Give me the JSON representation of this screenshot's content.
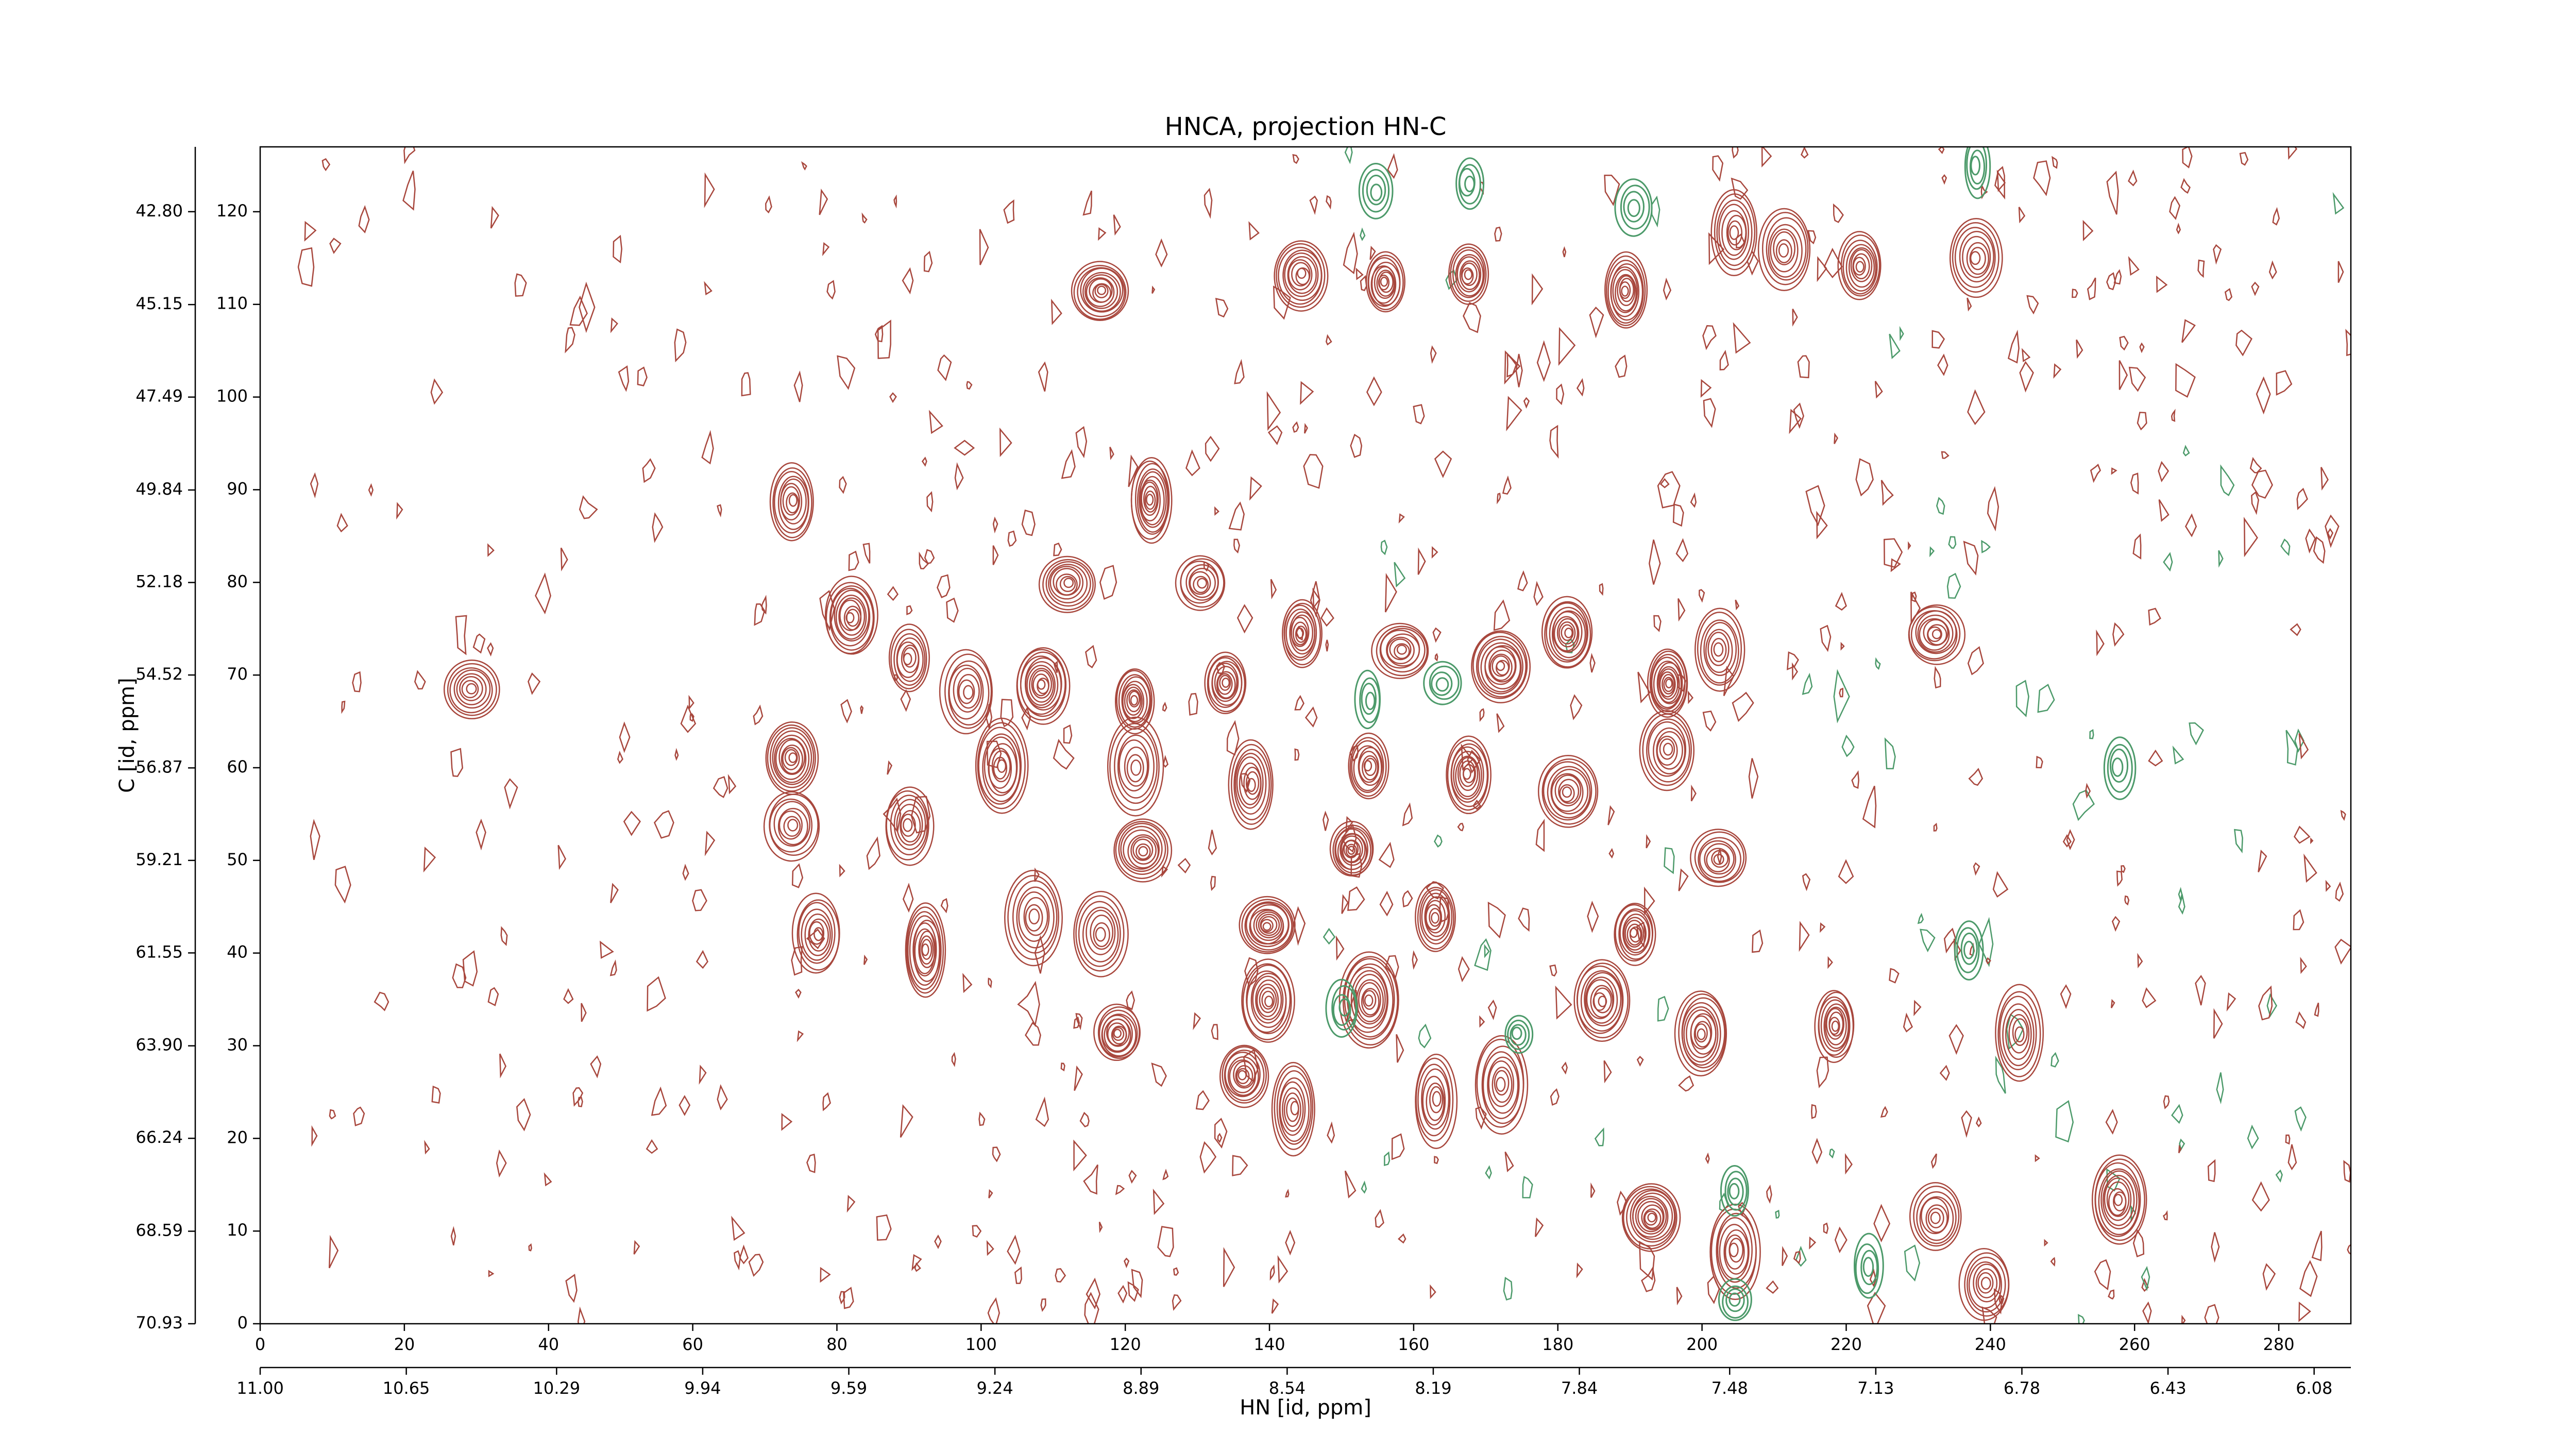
{
  "chart_data": {
    "type": "contour",
    "title": "HNCA, projection HN-C",
    "xlabel": "HN [id, ppm]",
    "ylabel": "C [id, ppm]",
    "xlim": [
      0,
      290
    ],
    "ylim": [
      0,
      127
    ],
    "xticks": [
      0,
      20,
      40,
      60,
      80,
      100,
      120,
      140,
      160,
      180,
      200,
      220,
      240,
      260,
      280
    ],
    "yticks": [
      0,
      10,
      20,
      30,
      40,
      50,
      60,
      70,
      80,
      90,
      100,
      110,
      120
    ],
    "x2lim": [
      11.0,
      5.992
    ],
    "x2ticks": [
      {
        "value": 11.0,
        "label": "11.00"
      },
      10.65,
      10.29,
      9.94,
      9.59,
      9.24,
      8.89,
      8.54,
      8.19,
      7.84,
      7.48,
      7.13,
      6.78,
      6.43,
      6.08
    ],
    "y2lim": [
      70.93,
      41.16
    ],
    "y2ticks": [
      70.93,
      68.59,
      66.24,
      {
        "value": 63.9,
        "label": "63.90"
      },
      61.55,
      59.21,
      56.87,
      54.52,
      52.18,
      49.84,
      47.49,
      45.15,
      {
        "value": 42.8,
        "label": "42.80"
      }
    ],
    "series": [
      {
        "color": "#a8473d",
        "x": [
          29.2,
          73.8,
          116.6,
          123.6,
          144.4,
          156,
          167.6,
          189.5,
          204.6,
          211.5,
          222,
          238.1,
          112,
          130.5,
          82,
          90,
          98.1,
          108.5,
          121.3,
          134,
          144.4,
          158.3,
          172.2,
          181.4,
          195.3,
          202.3,
          232.4,
          73.8,
          73.8,
          90,
          102.8,
          121.3,
          137.5,
          153.8,
          167.6,
          181.4,
          195.3,
          122.4,
          151.4,
          202.3,
          77.3,
          92.3,
          107.4,
          116.6,
          139.8,
          163,
          190.7,
          139.8,
          153.8,
          186,
          119,
          200,
          243.9,
          218.5,
          136.3,
          143.3,
          163,
          172.2,
          193,
          232.4,
          204.6,
          239.3,
          257.8
        ],
        "y": [
          68.5,
          88.7,
          111.4,
          88.9,
          113.2,
          112.3,
          113.2,
          111.4,
          117.7,
          115.9,
          114.1,
          115,
          79.9,
          79.9,
          76.3,
          71.8,
          68.2,
          68.9,
          67.3,
          69.1,
          74.5,
          72.7,
          70.9,
          74.5,
          69.1,
          72.7,
          74.5,
          61,
          53.8,
          53.8,
          60.1,
          60.1,
          58.3,
          60.1,
          59.2,
          57.4,
          61.9,
          51.1,
          51.1,
          50.2,
          42.1,
          40.3,
          43.9,
          42.1,
          43,
          43.9,
          42.1,
          34.9,
          34.9,
          34.9,
          31.3,
          31.3,
          31.3,
          32.2,
          26.8,
          23.2,
          24.1,
          25.9,
          11.5,
          11.5,
          7.9,
          4.3,
          13.3
        ]
      },
      {
        "color": "#4c9a6a",
        "x": [
          154.8,
          167.6,
          190.7,
          238.1,
          204.6,
          223.1,
          204.6,
          153.8,
          164.1,
          174.5,
          150.2,
          237,
          257.8
        ],
        "y": [
          122.2,
          123.1,
          120.4,
          124.9,
          2.5,
          6.1,
          14.2,
          67.3,
          69.1,
          31.3,
          34,
          40.3,
          60.1
        ]
      }
    ]
  }
}
